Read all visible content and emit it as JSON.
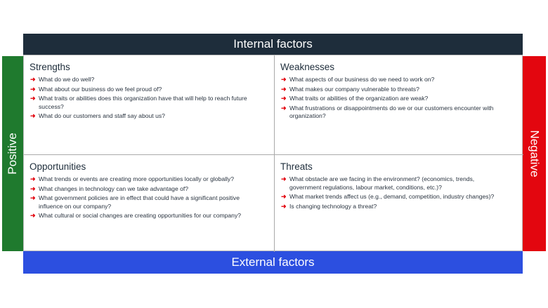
{
  "labels": {
    "top": "Internal factors",
    "bottom": "External factors",
    "left": "Positive",
    "right": "Negative"
  },
  "colors": {
    "internal": "#1e2d3b",
    "external": "#2c4fe0",
    "positive": "#1f7a2e",
    "negative": "#e3060f",
    "bullet": "#e3060f"
  },
  "bullet_icon": "red-arrow-icon",
  "quadrants": [
    {
      "title": "Strengths",
      "items": [
        "What do we do well?",
        "What about our business do we feel proud of?",
        "What traits or abilities does this organization have that will help to reach future success?",
        "What do our customers and staff say about us?"
      ]
    },
    {
      "title": "Weaknesses",
      "items": [
        "What aspects of our business do we need to work on?",
        "What makes our company vulnerable to threats?",
        "What traits or abilities of the organization are weak?",
        "What frustrations or disappointments do we or our customers encounter with organization?"
      ]
    },
    {
      "title": "Opportunities",
      "items": [
        "What trends or events are creating more opportunities locally or globally?",
        "What changes in technology can we take advantage of?",
        "What government policies are in effect that could have a significant positive influence on our company?",
        "What cultural or social changes are creating opportunities for our company?"
      ]
    },
    {
      "title": "Threats",
      "items": [
        "What obstacle are we facing in the environment? (economics, trends, government regulations, labour market, conditions, etc.)?",
        "What market trends affect us (e.g., demand, competition, industry changes)?",
        "Is changing technology a threat?"
      ]
    }
  ]
}
